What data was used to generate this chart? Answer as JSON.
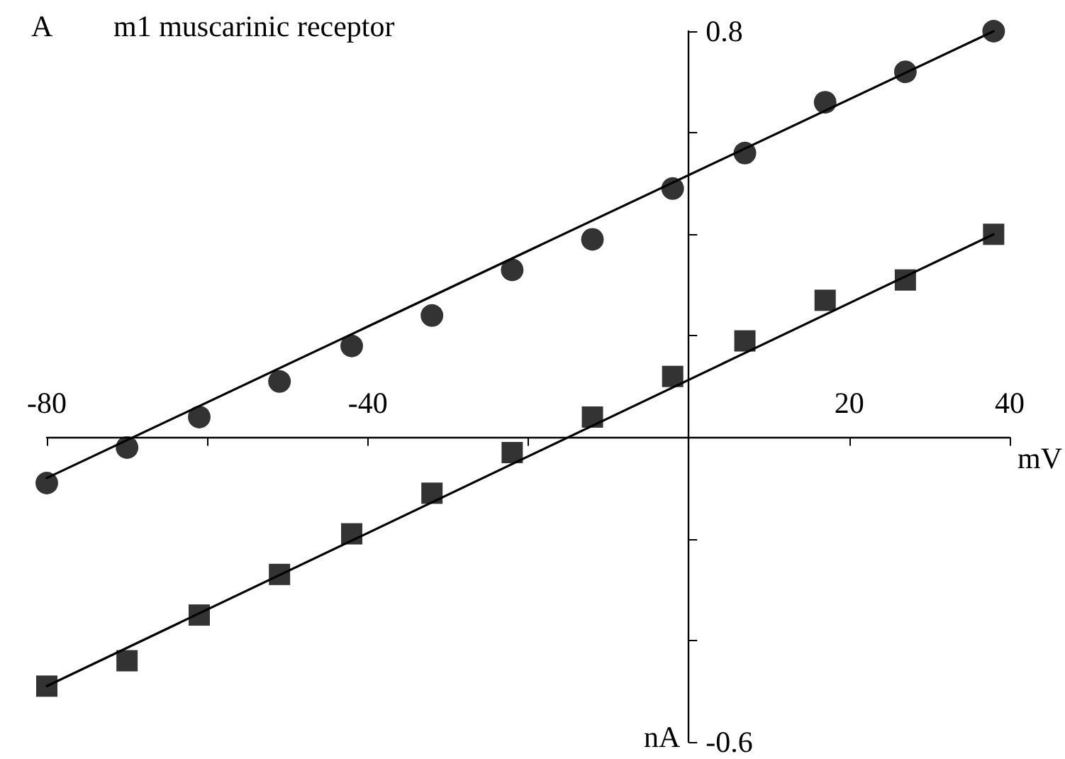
{
  "chart_data": {
    "type": "scatter",
    "title": "m1 muscarinic receptor",
    "xlabel": "mV",
    "ylabel": "nA",
    "annotations": [
      "A"
    ],
    "xlim": [
      -80,
      40
    ],
    "ylim": [
      -0.6,
      0.8
    ],
    "xticks": [
      -80,
      {
        "value": -60,
        "label": null
      },
      -40,
      {
        "value": -20,
        "label": null
      },
      {
        "value": 0,
        "label": null
      },
      20,
      40
    ],
    "yticks": [
      -0.6,
      {
        "value": -0.4,
        "label": null
      },
      {
        "value": -0.2,
        "label": null
      },
      {
        "value": 0.2,
        "label": null
      },
      {
        "value": 0.4,
        "label": null
      },
      {
        "value": 0.6,
        "label": null
      },
      0.8
    ],
    "grid": false,
    "series": [
      {
        "marker": "circle",
        "color": "#000000",
        "x": [
          -80,
          -70,
          -61,
          -51,
          -42,
          -32,
          -22,
          -12,
          -2,
          7,
          17,
          27,
          38
        ],
        "values": [
          -0.09,
          -0.02,
          0.04,
          0.11,
          0.18,
          0.24,
          0.33,
          0.39,
          0.49,
          0.56,
          0.66,
          0.72,
          0.8
        ]
      },
      {
        "marker": "square",
        "color": "#000000",
        "x": [
          -80,
          -70,
          -61,
          -51,
          -42,
          -32,
          -22,
          -12,
          -2,
          7,
          17,
          27,
          38
        ],
        "values": [
          -0.49,
          -0.44,
          -0.35,
          -0.27,
          -0.19,
          -0.11,
          -0.03,
          0.04,
          0.12,
          0.19,
          0.27,
          0.31,
          0.4
        ]
      },
      {
        "type": "line",
        "marker": "none",
        "line_style": "solid",
        "color": "#000000",
        "x": [
          -80,
          38
        ],
        "values": [
          -0.08,
          0.8
        ]
      },
      {
        "type": "line",
        "marker": "none",
        "line_style": "solid",
        "color": "#000000",
        "x": [
          -80,
          38
        ],
        "values": [
          -0.49,
          0.4
        ]
      }
    ]
  }
}
